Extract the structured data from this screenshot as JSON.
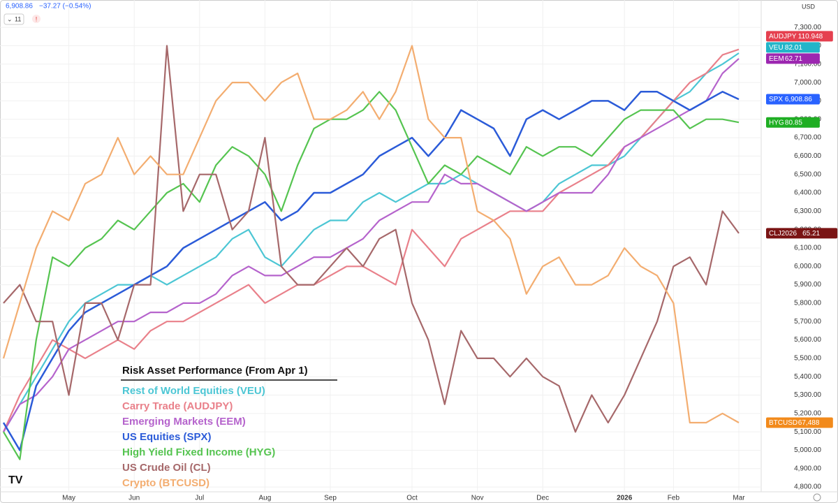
{
  "toolbar": {
    "price": "6,908.86",
    "change": "−37.27 (−0.54%)",
    "interval": "11",
    "currency": "USD"
  },
  "chart_data": {
    "type": "line",
    "legend_title": "Risk Asset Performance (From Apr 1)",
    "categories": [
      null,
      null,
      null,
      null,
      "May",
      null,
      null,
      null,
      "Jun",
      null,
      null,
      null,
      "Jul",
      null,
      null,
      null,
      "Aug",
      null,
      null,
      null,
      "Sep",
      null,
      null,
      null,
      null,
      "Oct",
      null,
      null,
      null,
      "Nov",
      null,
      null,
      null,
      "Dec",
      null,
      null,
      null,
      null,
      "2026",
      null,
      null,
      "Feb",
      null,
      null,
      null,
      "Mar"
    ],
    "ylim": [
      4770,
      7350
    ],
    "yticks": [
      {
        "value": 4800,
        "label": "4,800.00"
      },
      {
        "value": 4900,
        "label": "4,900.00"
      },
      {
        "value": 5000,
        "label": "5,000.00"
      },
      {
        "value": 5100,
        "label": "5,100.00"
      },
      {
        "value": 5200,
        "label": "5,200.00"
      },
      {
        "value": 5300,
        "label": "5,300.00"
      },
      {
        "value": 5400,
        "label": "5,400.00"
      },
      {
        "value": 5500,
        "label": "5,500.00"
      },
      {
        "value": 5600,
        "label": "5,600.00"
      },
      {
        "value": 5700,
        "label": "5,700.00"
      },
      {
        "value": 5800,
        "label": "5,800.00"
      },
      {
        "value": 5900,
        "label": "5,900.00"
      },
      {
        "value": 6000,
        "label": "6,000.00"
      },
      {
        "value": 6100,
        "label": "6,100.00"
      },
      {
        "value": 6200,
        "label": "6,200.00"
      },
      {
        "value": 6300,
        "label": "6,300.00"
      },
      {
        "value": 6400,
        "label": "6,400.00"
      },
      {
        "value": 6500,
        "label": "6,500.00"
      },
      {
        "value": 6600,
        "label": "6,600.00"
      },
      {
        "value": 6700,
        "label": "6,700.00"
      },
      {
        "value": 6800,
        "label": "6,800.00"
      },
      {
        "value": 6900,
        "label": "6,900.00"
      },
      {
        "value": 7000,
        "label": "7,000.00"
      },
      {
        "value": 7100,
        "label": "7,100.00"
      },
      {
        "value": 7200,
        "label": "7,200.00"
      },
      {
        "value": 7300,
        "label": "7,300.00"
      }
    ],
    "grid": true,
    "series": [
      {
        "name": "Rest of World Equities (VEU)",
        "color": "#4cc6d4",
        "tag": "VEU",
        "last_price": "82.01",
        "tag_color": "#22b5c9",
        "values": [
          5100,
          5250,
          5400,
          5550,
          5700,
          5800,
          5850,
          5900,
          5900,
          5950,
          5900,
          5950,
          6000,
          6050,
          6150,
          6200,
          6050,
          6000,
          6100,
          6200,
          6250,
          6250,
          6350,
          6400,
          6350,
          6400,
          6450,
          6450,
          6500,
          6450,
          6400,
          6350,
          6300,
          6350,
          6450,
          6500,
          6550,
          6550,
          6600,
          6700,
          6800,
          6900,
          6950,
          7050,
          7100,
          7160
        ]
      },
      {
        "name": "Carry Trade (AUDJPY)",
        "color": "#e9808a",
        "tag": "AUDJPY",
        "last_price": "110.948",
        "tag_color": "#e5404f",
        "values": [
          5100,
          5300,
          5450,
          5600,
          5550,
          5500,
          5550,
          5600,
          5550,
          5650,
          5700,
          5700,
          5750,
          5800,
          5850,
          5900,
          5800,
          5850,
          5900,
          5900,
          5950,
          6000,
          6000,
          5950,
          5900,
          6200,
          6100,
          6000,
          6150,
          6200,
          6250,
          6300,
          6300,
          6300,
          6400,
          6450,
          6500,
          6550,
          6650,
          6700,
          6800,
          6900,
          7000,
          7050,
          7150,
          7180
        ]
      },
      {
        "name": "Emerging Markets (EEM)",
        "color": "#b563cc",
        "tag": "EEM",
        "last_price": "62.71",
        "tag_color": "#9c27b0",
        "values": [
          5100,
          5250,
          5300,
          5400,
          5550,
          5600,
          5650,
          5700,
          5700,
          5750,
          5750,
          5800,
          5800,
          5850,
          5950,
          6000,
          5950,
          5950,
          6000,
          6050,
          6050,
          6100,
          6150,
          6250,
          6300,
          6350,
          6350,
          6500,
          6450,
          6450,
          6400,
          6350,
          6300,
          6350,
          6400,
          6400,
          6400,
          6500,
          6650,
          6700,
          6750,
          6800,
          6850,
          6900,
          7050,
          7130
        ]
      },
      {
        "name": "US Equities (SPX)",
        "color": "#2b5bd8",
        "tag": "SPX",
        "last_price": "6,908.86",
        "tag_color": "#2962ff",
        "values": [
          5150,
          5000,
          5350,
          5500,
          5650,
          5750,
          5800,
          5850,
          5900,
          5950,
          6000,
          6100,
          6150,
          6200,
          6250,
          6300,
          6350,
          6250,
          6300,
          6400,
          6400,
          6450,
          6500,
          6600,
          6650,
          6700,
          6600,
          6700,
          6850,
          6800,
          6750,
          6600,
          6800,
          6850,
          6800,
          6850,
          6900,
          6900,
          6850,
          6950,
          6950,
          6900,
          6850,
          6900,
          6950,
          6909
        ]
      },
      {
        "name": "High Yield Fixed Income (HYG)",
        "color": "#55c450",
        "tag": "HYG",
        "last_price": "80.85",
        "tag_color": "#1fae23",
        "values": [
          5100,
          4950,
          5600,
          6050,
          6000,
          6100,
          6150,
          6250,
          6200,
          6300,
          6400,
          6450,
          6350,
          6550,
          6650,
          6600,
          6500,
          6300,
          6550,
          6750,
          6800,
          6800,
          6850,
          6950,
          6850,
          6650,
          6450,
          6550,
          6500,
          6600,
          6550,
          6500,
          6650,
          6600,
          6650,
          6650,
          6600,
          6700,
          6800,
          6850,
          6850,
          6850,
          6750,
          6800,
          6800,
          6783
        ]
      },
      {
        "name": "US Crude Oil (CL)",
        "color": "#a6686a",
        "tag": "CLJ2026",
        "last_price": "65.21",
        "tag_color": "#7a1414",
        "values": [
          5800,
          5900,
          5700,
          5700,
          5300,
          5800,
          5800,
          5600,
          5900,
          5900,
          7200,
          6300,
          6500,
          6500,
          6200,
          6300,
          6700,
          6000,
          5900,
          5900,
          6000,
          6100,
          6000,
          6150,
          6200,
          5800,
          5600,
          5250,
          5650,
          5500,
          5500,
          5400,
          5500,
          5400,
          5350,
          5100,
          5300,
          5150,
          5300,
          5500,
          5700,
          6000,
          6050,
          5900,
          6300,
          6180
        ]
      },
      {
        "name": "Crypto (BTCUSD)",
        "color": "#f3ad70",
        "tag": "BTCUSD",
        "last_price": "67,488",
        "tag_color": "#f28a1b",
        "values": [
          5500,
          5800,
          6100,
          6300,
          6250,
          6450,
          6500,
          6700,
          6500,
          6600,
          6500,
          6500,
          6700,
          6900,
          7000,
          7000,
          6900,
          7000,
          7050,
          6800,
          6800,
          6850,
          6950,
          6800,
          6950,
          7200,
          6800,
          6700,
          6700,
          6300,
          6250,
          6150,
          5850,
          6000,
          6050,
          5900,
          5900,
          5950,
          6100,
          6000,
          5950,
          5800,
          5150,
          5150,
          5200,
          5150
        ]
      }
    ]
  }
}
